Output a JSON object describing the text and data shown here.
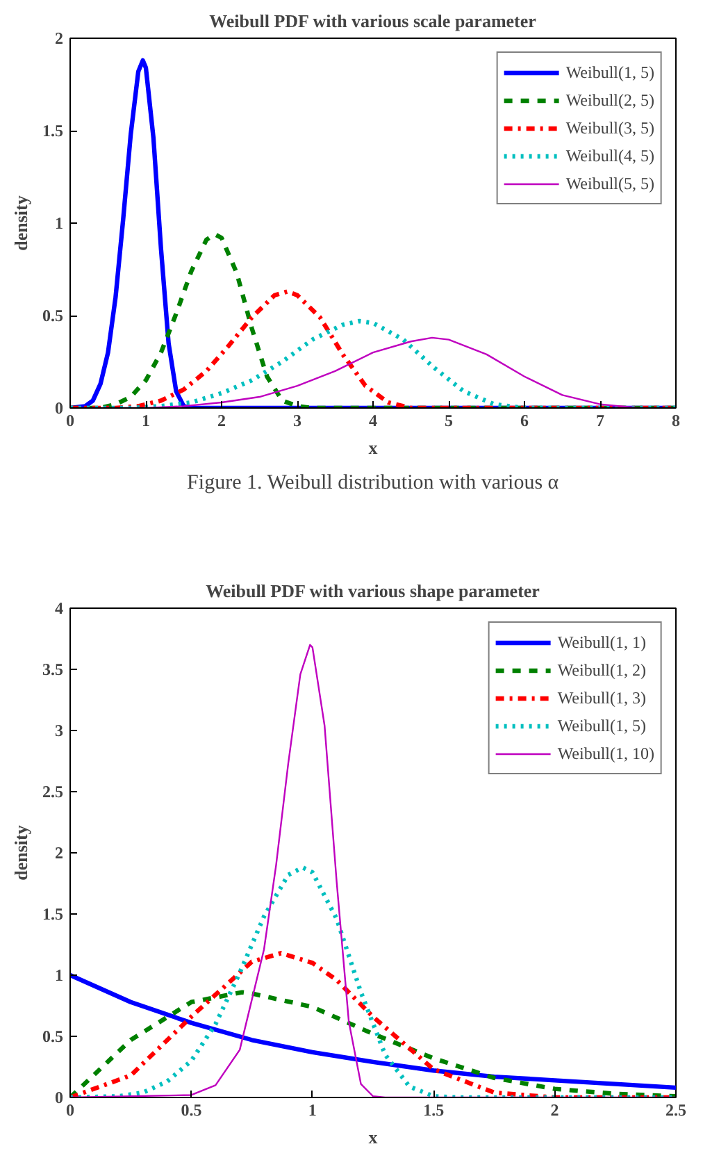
{
  "chart_data": [
    {
      "type": "line",
      "title": "Weibull PDF with various scale parameter",
      "xlabel": "x",
      "ylabel": "density",
      "xlim": [
        0,
        8
      ],
      "ylim": [
        0,
        2
      ],
      "xticks": [
        0,
        1,
        2,
        3,
        4,
        5,
        6,
        7,
        8
      ],
      "yticks": [
        0,
        0.5,
        1,
        1.5,
        2
      ],
      "legend": "top right",
      "grid": false,
      "annotations": [
        "Figure 1. Weibull distribution with various α"
      ],
      "series": [
        {
          "name": "Weibull(1, 5)",
          "color": "#0000ff",
          "line_style": "solid",
          "x": [
            0,
            0.2,
            0.3,
            0.4,
            0.5,
            0.6,
            0.7,
            0.8,
            0.9,
            0.96,
            1.0,
            1.1,
            1.2,
            1.3,
            1.4,
            1.5,
            1.6,
            8
          ],
          "values": [
            0,
            0.01,
            0.04,
            0.13,
            0.3,
            0.6,
            1.02,
            1.48,
            1.82,
            1.88,
            1.84,
            1.46,
            0.86,
            0.35,
            0.09,
            0.01,
            0,
            0
          ]
        },
        {
          "name": "Weibull(2, 5)",
          "color": "#008000",
          "line_style": "dashed",
          "x": [
            0,
            0.4,
            0.6,
            0.8,
            1.0,
            1.2,
            1.4,
            1.6,
            1.8,
            1.91,
            2.0,
            2.2,
            2.4,
            2.6,
            2.8,
            3.0,
            3.2,
            8
          ],
          "values": [
            0,
            0,
            0.02,
            0.06,
            0.15,
            0.3,
            0.51,
            0.74,
            0.91,
            0.94,
            0.92,
            0.73,
            0.43,
            0.17,
            0.04,
            0.01,
            0,
            0
          ]
        },
        {
          "name": "Weibull(3, 5)",
          "color": "#ff0000",
          "line_style": "dashdot",
          "x": [
            0,
            0.6,
            0.9,
            1.2,
            1.5,
            1.8,
            2.1,
            2.4,
            2.7,
            2.87,
            3.0,
            3.3,
            3.6,
            3.9,
            4.2,
            4.5,
            4.8,
            8
          ],
          "values": [
            0,
            0,
            0.01,
            0.04,
            0.1,
            0.2,
            0.34,
            0.49,
            0.61,
            0.63,
            0.61,
            0.49,
            0.29,
            0.12,
            0.03,
            0,
            0,
            0
          ]
        },
        {
          "name": "Weibull(4, 5)",
          "color": "#00bfbf",
          "line_style": "dotted",
          "x": [
            0,
            0.8,
            1.2,
            1.6,
            2.0,
            2.4,
            2.8,
            3.2,
            3.6,
            3.82,
            4.0,
            4.4,
            4.8,
            5.2,
            5.6,
            6.0,
            6.4,
            8
          ],
          "values": [
            0,
            0,
            0.01,
            0.03,
            0.08,
            0.15,
            0.25,
            0.37,
            0.45,
            0.47,
            0.46,
            0.37,
            0.22,
            0.09,
            0.02,
            0,
            0,
            0
          ]
        },
        {
          "name": "Weibull(5, 5)",
          "color": "#bf00bf",
          "line_style": "solid",
          "x": [
            0,
            1,
            1.5,
            2,
            2.5,
            3,
            3.5,
            4,
            4.5,
            4.78,
            5,
            5.5,
            6,
            6.5,
            7,
            7.5,
            8
          ],
          "values": [
            0,
            0,
            0.01,
            0.03,
            0.06,
            0.12,
            0.2,
            0.3,
            0.36,
            0.38,
            0.37,
            0.29,
            0.17,
            0.07,
            0.02,
            0,
            0
          ]
        }
      ]
    },
    {
      "type": "line",
      "title": "Weibull PDF with various shape parameter",
      "xlabel": "x",
      "ylabel": "density",
      "xlim": [
        0,
        2.5
      ],
      "ylim": [
        0,
        4
      ],
      "xticks": [
        0,
        0.5,
        1,
        1.5,
        2,
        2.5
      ],
      "yticks": [
        0,
        0.5,
        1,
        1.5,
        2,
        2.5,
        3,
        3.5,
        4
      ],
      "legend": "top right",
      "grid": false,
      "series": [
        {
          "name": "Weibull(1, 1)",
          "color": "#0000ff",
          "line_style": "solid",
          "x": [
            0,
            0.25,
            0.5,
            0.75,
            1,
            1.25,
            1.5,
            1.75,
            2,
            2.25,
            2.5
          ],
          "values": [
            1,
            0.78,
            0.61,
            0.47,
            0.37,
            0.29,
            0.22,
            0.17,
            0.14,
            0.11,
            0.08
          ]
        },
        {
          "name": "Weibull(1, 2)",
          "color": "#008000",
          "line_style": "dashed",
          "x": [
            0,
            0.25,
            0.5,
            0.71,
            0.75,
            1,
            1.25,
            1.5,
            1.75,
            2,
            2.25,
            2.5
          ],
          "values": [
            0,
            0.47,
            0.78,
            0.86,
            0.85,
            0.74,
            0.52,
            0.32,
            0.16,
            0.07,
            0.03,
            0.01
          ]
        },
        {
          "name": "Weibull(1, 3)",
          "color": "#ff0000",
          "line_style": "dashdot",
          "x": [
            0,
            0.25,
            0.5,
            0.75,
            0.87,
            1,
            1.1,
            1.25,
            1.5,
            1.75,
            2,
            2.5
          ],
          "values": [
            0,
            0.18,
            0.66,
            1.11,
            1.18,
            1.1,
            0.96,
            0.66,
            0.23,
            0.04,
            0,
            0
          ]
        },
        {
          "name": "Weibull(1, 5)",
          "color": "#00bfbf",
          "line_style": "dotted",
          "x": [
            0,
            0.2,
            0.3,
            0.4,
            0.5,
            0.6,
            0.7,
            0.8,
            0.9,
            0.96,
            1.0,
            1.1,
            1.2,
            1.3,
            1.4,
            1.5,
            1.6,
            2.5
          ],
          "values": [
            0,
            0.01,
            0.04,
            0.13,
            0.3,
            0.6,
            1.02,
            1.48,
            1.82,
            1.88,
            1.84,
            1.46,
            0.86,
            0.35,
            0.09,
            0.01,
            0,
            0
          ]
        },
        {
          "name": "Weibull(1, 10)",
          "color": "#bf00bf",
          "line_style": "solid",
          "x": [
            0,
            0.5,
            0.6,
            0.7,
            0.8,
            0.85,
            0.9,
            0.95,
            0.99,
            1.0,
            1.05,
            1.1,
            1.15,
            1.2,
            1.25,
            1.3,
            2.5
          ],
          "values": [
            0,
            0.02,
            0.1,
            0.39,
            1.21,
            1.9,
            2.73,
            3.46,
            3.7,
            3.68,
            3.04,
            1.76,
            0.62,
            0.11,
            0.01,
            0,
            0
          ]
        }
      ]
    }
  ]
}
